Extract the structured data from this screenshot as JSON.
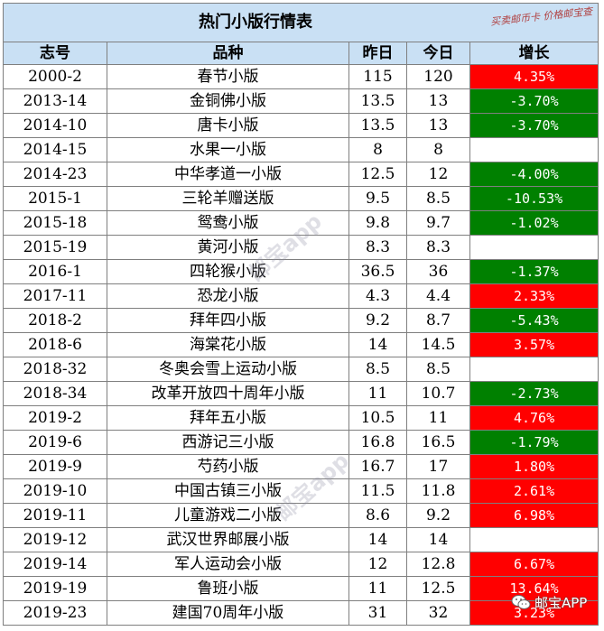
{
  "table": {
    "title": "热门小版行情表",
    "stamp_line1": "买卖邮币卡 价格邮宝查",
    "headers": {
      "code": "志号",
      "name": "品种",
      "yesterday": "昨日",
      "today": "今日",
      "growth": "增长"
    },
    "rows": [
      {
        "code": "2000-2",
        "name": "春节小版",
        "yesterday": "115",
        "today": "120",
        "growth": "4.35%",
        "trend": "up"
      },
      {
        "code": "2013-14",
        "name": "金铜佛小版",
        "yesterday": "13.5",
        "today": "13",
        "growth": "-3.70%",
        "trend": "down"
      },
      {
        "code": "2014-10",
        "name": "唐卡小版",
        "yesterday": "13.5",
        "today": "13",
        "growth": "-3.70%",
        "trend": "down"
      },
      {
        "code": "2014-15",
        "name": "水果一小版",
        "yesterday": "8",
        "today": "8",
        "growth": "",
        "trend": "flat"
      },
      {
        "code": "2014-23",
        "name": "中华孝道一小版",
        "yesterday": "12.5",
        "today": "12",
        "growth": "-4.00%",
        "trend": "down"
      },
      {
        "code": "2015-1",
        "name": "三轮羊赠送版",
        "yesterday": "9.5",
        "today": "8.5",
        "growth": "-10.53%",
        "trend": "down"
      },
      {
        "code": "2015-18",
        "name": "鸳鸯小版",
        "yesterday": "9.8",
        "today": "9.7",
        "growth": "-1.02%",
        "trend": "down"
      },
      {
        "code": "2015-19",
        "name": "黄河小版",
        "yesterday": "8.3",
        "today": "8.3",
        "growth": "",
        "trend": "flat"
      },
      {
        "code": "2016-1",
        "name": "四轮猴小版",
        "yesterday": "36.5",
        "today": "36",
        "growth": "-1.37%",
        "trend": "down"
      },
      {
        "code": "2017-11",
        "name": "恐龙小版",
        "yesterday": "4.3",
        "today": "4.4",
        "growth": "2.33%",
        "trend": "up"
      },
      {
        "code": "2018-2",
        "name": "拜年四小版",
        "yesterday": "9.2",
        "today": "8.7",
        "growth": "-5.43%",
        "trend": "down"
      },
      {
        "code": "2018-6",
        "name": "海棠花小版",
        "yesterday": "14",
        "today": "14.5",
        "growth": "3.57%",
        "trend": "up"
      },
      {
        "code": "2018-32",
        "name": "冬奥会雪上运动小版",
        "yesterday": "8.5",
        "today": "8.5",
        "growth": "",
        "trend": "flat"
      },
      {
        "code": "2018-34",
        "name": "改革开放四十周年小版",
        "yesterday": "11",
        "today": "10.7",
        "growth": "-2.73%",
        "trend": "down"
      },
      {
        "code": "2019-2",
        "name": "拜年五小版",
        "yesterday": "10.5",
        "today": "11",
        "growth": "4.76%",
        "trend": "up"
      },
      {
        "code": "2019-6",
        "name": "西游记三小版",
        "yesterday": "16.8",
        "today": "16.5",
        "growth": "-1.79%",
        "trend": "down"
      },
      {
        "code": "2019-9",
        "name": "芍药小版",
        "yesterday": "16.7",
        "today": "17",
        "growth": "1.80%",
        "trend": "up"
      },
      {
        "code": "2019-10",
        "name": "中国古镇三小版",
        "yesterday": "11.5",
        "today": "11.8",
        "growth": "2.61%",
        "trend": "up"
      },
      {
        "code": "2019-11",
        "name": "儿童游戏二小版",
        "yesterday": "8.6",
        "today": "9.2",
        "growth": "6.98%",
        "trend": "up"
      },
      {
        "code": "2019-12",
        "name": "武汉世界邮展小版",
        "yesterday": "14",
        "today": "14",
        "growth": "",
        "trend": "flat"
      },
      {
        "code": "2019-14",
        "name": "军人运动会小版",
        "yesterday": "12",
        "today": "12.8",
        "growth": "6.67%",
        "trend": "up"
      },
      {
        "code": "2019-19",
        "name": "鲁班小版",
        "yesterday": "11",
        "today": "12.5",
        "growth": "13.64%",
        "trend": "up"
      },
      {
        "code": "2019-23",
        "name": "建国70周年小版",
        "yesterday": "31",
        "today": "32",
        "growth": "3.23%",
        "trend": "up"
      }
    ]
  },
  "colors": {
    "header_bg": "#c9e0f4",
    "up": "#ff0000",
    "down": "#008000"
  },
  "watermark": {
    "text": "邮宝app"
  },
  "brand": {
    "icon": "wechat-icon",
    "label": "邮宝APP"
  }
}
